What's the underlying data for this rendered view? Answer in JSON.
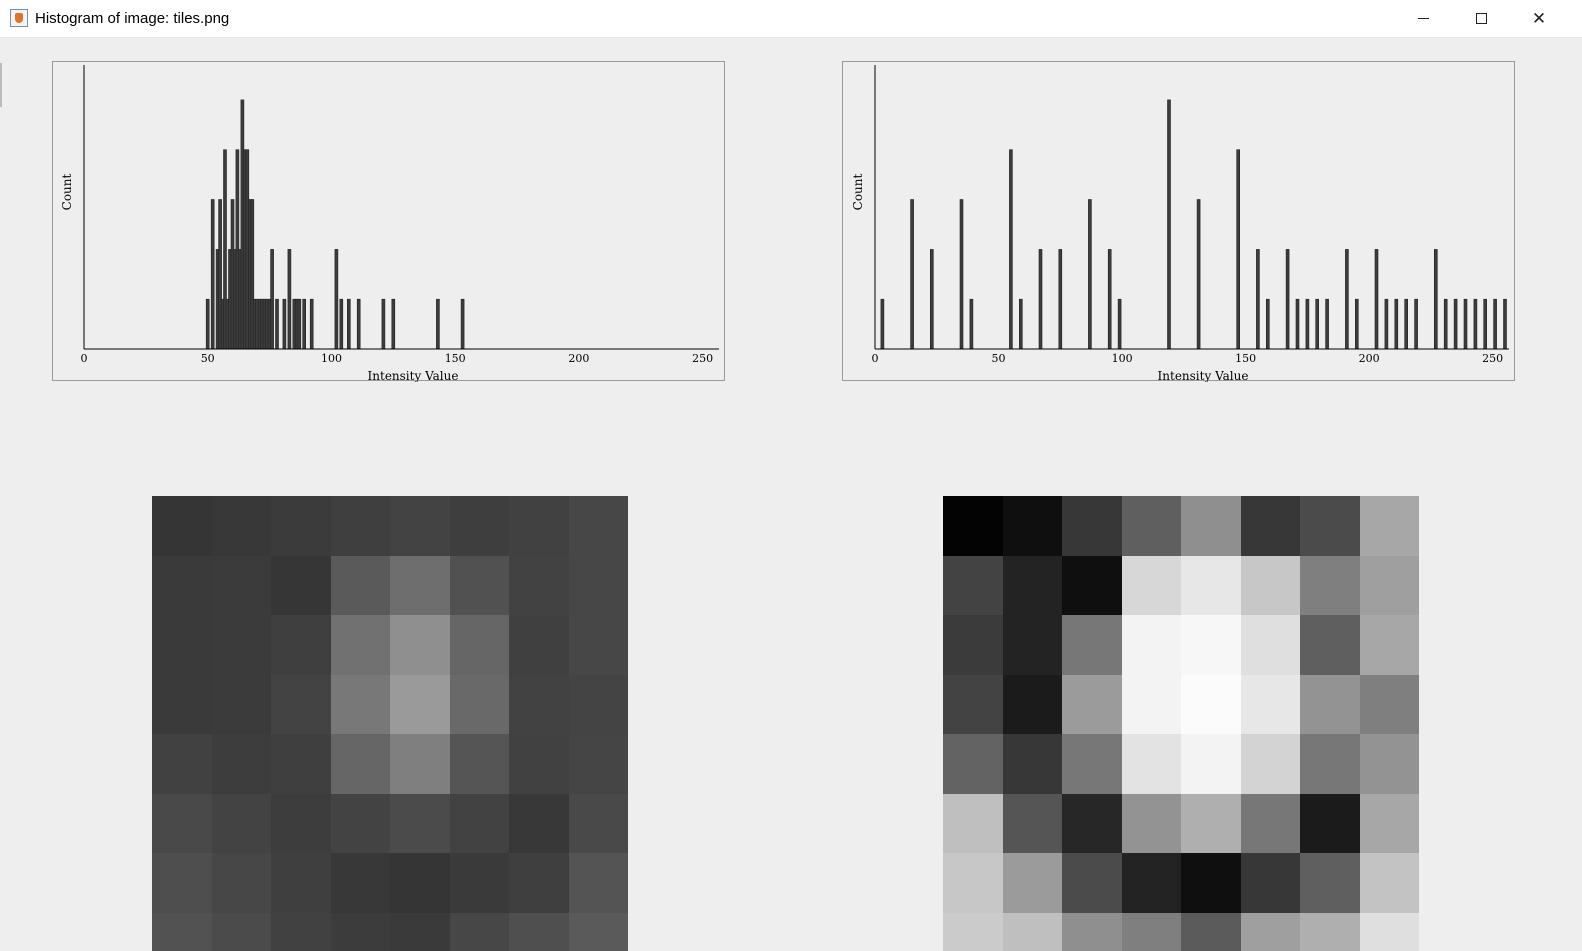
{
  "window": {
    "title": "Histogram of image: tiles.png",
    "minimize_glyph": "",
    "maximize_glyph": "",
    "close_glyph": "✕"
  },
  "colors": {
    "bar_fill": "#3c3c3c",
    "bar_outline": "#222222",
    "axis": "#000000",
    "panel_bg": "#eeeeee"
  },
  "histograms": {
    "left": {
      "xlabel": "Intensity Value",
      "ylabel": "Count",
      "ticks": [
        "0",
        "50",
        "100",
        "150",
        "200",
        "250"
      ]
    },
    "right": {
      "xlabel": "Intensity Value",
      "ylabel": "Count",
      "ticks": [
        "0",
        "50",
        "100",
        "150",
        "200",
        "250"
      ]
    }
  },
  "chart_data": [
    {
      "type": "bar",
      "xlabel": "Intensity Value",
      "ylabel": "Count",
      "xlim": [
        0,
        255
      ],
      "ylim": [
        0,
        5.7
      ],
      "x": [
        50,
        52,
        54,
        55,
        56,
        57,
        58,
        59,
        60,
        61,
        62,
        63,
        64,
        65,
        66,
        67,
        68,
        69,
        70,
        71,
        72,
        73,
        74,
        75,
        76,
        78,
        81,
        83,
        85,
        86,
        87,
        89,
        92,
        102,
        104,
        107,
        111,
        121,
        125,
        143,
        153
      ],
      "values": [
        1,
        3,
        2,
        3,
        1,
        4,
        1,
        2,
        3,
        2,
        4,
        2,
        5,
        4,
        4,
        3,
        3,
        1,
        1,
        1,
        1,
        1,
        1,
        1,
        2,
        1,
        1,
        2,
        1,
        1,
        1,
        1,
        1,
        2,
        1,
        1,
        1,
        1,
        1,
        1,
        1
      ]
    },
    {
      "type": "bar",
      "xlabel": "Intensity Value",
      "ylabel": "Count",
      "xlim": [
        0,
        255
      ],
      "ylim": [
        0,
        5.7
      ],
      "x": [
        3,
        15,
        23,
        35,
        39,
        55,
        59,
        67,
        75,
        87,
        95,
        99,
        119,
        131,
        147,
        155,
        159,
        167,
        171,
        175,
        179,
        183,
        191,
        195,
        203,
        207,
        211,
        215,
        219,
        227,
        231,
        235,
        239,
        243,
        247,
        251,
        255
      ],
      "values": [
        1,
        3,
        2,
        3,
        1,
        4,
        1,
        2,
        2,
        3,
        2,
        1,
        5,
        3,
        4,
        2,
        1,
        2,
        1,
        1,
        1,
        1,
        2,
        1,
        2,
        1,
        1,
        1,
        1,
        2,
        1,
        1,
        1,
        1,
        1,
        1,
        1
      ]
    }
  ],
  "tiles": {
    "left": [
      [
        "#353535",
        "#383838",
        "#3b3b3b",
        "#3f3f3f",
        "#434343",
        "#3e3e3e",
        "#414141",
        "#474747"
      ],
      [
        "#3a3a3a",
        "#3b3b3b",
        "#363636",
        "#5a5a5a",
        "#6e6e6e",
        "#515151",
        "#424242",
        "#474747"
      ],
      [
        "#3a3a3a",
        "#3b3b3b",
        "#3f3f3f",
        "#717171",
        "#8f8f8f",
        "#666666",
        "#404040",
        "#474747"
      ],
      [
        "#3a3a3a",
        "#3b3b3b",
        "#434343",
        "#787878",
        "#9a9a9a",
        "#696969",
        "#424242",
        "#444444"
      ],
      [
        "#414141",
        "#3d3d3d",
        "#3f3f3f",
        "#666666",
        "#7f7f7f",
        "#555555",
        "#414141",
        "#454545"
      ],
      [
        "#494949",
        "#434343",
        "#3d3d3d",
        "#434343",
        "#4b4b4b",
        "#424242",
        "#383838",
        "#494949"
      ],
      [
        "#4e4e4e",
        "#474747",
        "#3f3f3f",
        "#383838",
        "#353535",
        "#3a3a3a",
        "#3f3f3f",
        "#545454"
      ],
      [
        "#525252",
        "#4b4b4b",
        "#414141",
        "#3c3c3c",
        "#3a3a3a",
        "#474747",
        "#4f4f4f",
        "#5a5a5a"
      ]
    ],
    "right": [
      [
        "#030303",
        "#0f0f0f",
        "#373737",
        "#5f5f5f",
        "#8f8f8f",
        "#373737",
        "#4b4b4b",
        "#a7a7a7"
      ],
      [
        "#434343",
        "#232323",
        "#0f0f0f",
        "#d7d7d7",
        "#e7e7e7",
        "#c7c7c7",
        "#7f7f7f",
        "#9f9f9f"
      ],
      [
        "#3b3b3b",
        "#232323",
        "#777777",
        "#f3f3f3",
        "#f7f7f7",
        "#dfdfdf",
        "#5f5f5f",
        "#a7a7a7"
      ],
      [
        "#434343",
        "#1b1b1b",
        "#9b9b9b",
        "#f3f3f3",
        "#fbfbfb",
        "#e7e7e7",
        "#939393",
        "#7f7f7f"
      ],
      [
        "#636363",
        "#373737",
        "#777777",
        "#e3e3e3",
        "#f3f3f3",
        "#d3d3d3",
        "#777777",
        "#939393"
      ],
      [
        "#bfbfbf",
        "#555555",
        "#272727",
        "#939393",
        "#afafaf",
        "#777777",
        "#1b1b1b",
        "#a7a7a7"
      ],
      [
        "#c7c7c7",
        "#9b9b9b",
        "#4b4b4b",
        "#232323",
        "#0f0f0f",
        "#373737",
        "#5f5f5f",
        "#c3c3c3"
      ],
      [
        "#cbcbcb",
        "#bfbfbf",
        "#8f8f8f",
        "#7f7f7f",
        "#5b5b5b",
        "#9f9f9f",
        "#afafaf",
        "#dfdfdf"
      ]
    ]
  }
}
